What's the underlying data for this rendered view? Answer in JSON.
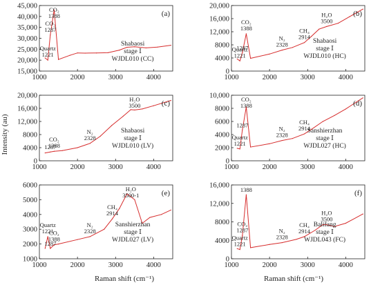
{
  "figure": {
    "xlabel": "Raman shift (cm⁻¹)",
    "ylabel": "Intensity (au)",
    "series_color": "#d62b2b"
  },
  "chart_data": [
    {
      "type": "line",
      "panel": "(a)",
      "xlim": [
        1000,
        4500
      ],
      "xticks": [
        1000,
        2000,
        3000,
        4000
      ],
      "ylim": [
        15000,
        45000
      ],
      "yticks": [
        15000,
        20000,
        25000,
        30000,
        35000,
        40000,
        45000
      ],
      "ytick_labels": [
        "15,000",
        "20,000",
        "25,000",
        "30,000",
        "35,000",
        "40,000",
        "45,000"
      ],
      "x": [
        1150,
        1221,
        1287,
        1388,
        1500,
        1800,
        2000,
        2200,
        2500,
        2800,
        3100,
        3300,
        3500,
        3800,
        4100,
        4450
      ],
      "y": [
        21000,
        20000,
        31500,
        43000,
        20300,
        22200,
        23300,
        23200,
        23300,
        23400,
        24600,
        25900,
        26100,
        25600,
        26000,
        26800
      ],
      "annotations": [
        {
          "label": "CO₂",
          "sublabel": "1388",
          "x": 1388,
          "y": 43000
        },
        {
          "label": "CO₂",
          "sublabel": "1287",
          "x": 1287,
          "y": 31500
        },
        {
          "label": "Quartz",
          "sublabel": "1221",
          "x": 1221,
          "y": 20000
        }
      ],
      "sample_text": [
        "Shabaosi",
        "stage Ⅰ",
        "WJDL010 (CC)"
      ]
    },
    {
      "type": "line",
      "panel": "(b)",
      "xlim": [
        1000,
        4500
      ],
      "xticks": [
        1000,
        2000,
        3000,
        4000
      ],
      "ylim": [
        0,
        20000
      ],
      "yticks": [
        0,
        4000,
        8000,
        12000,
        16000,
        20000
      ],
      "ytick_labels": [
        "0",
        "4000",
        "8000",
        "12,000",
        "16,000",
        "20,000"
      ],
      "x": [
        1150,
        1221,
        1287,
        1388,
        1500,
        2000,
        2328,
        2600,
        2914,
        3100,
        3300,
        3500,
        3800,
        4100,
        4450
      ],
      "y": [
        3700,
        3100,
        5600,
        11400,
        3900,
        5200,
        6400,
        7200,
        8700,
        10600,
        12800,
        13600,
        14600,
        16600,
        18900
      ],
      "annotations": [
        {
          "label": "CO₂",
          "sublabel": "1388",
          "x": 1388,
          "y": 11400
        },
        {
          "label": "1287",
          "sublabel": "",
          "x": 1287,
          "y": 5600
        },
        {
          "label": "Quartz",
          "sublabel": "1221",
          "x": 1221,
          "y": 3100
        },
        {
          "label": "N₂",
          "sublabel": "2328",
          "x": 2328,
          "y": 6400
        },
        {
          "label": "CH₄",
          "sublabel": "2914",
          "x": 2914,
          "y": 8700
        },
        {
          "label": "H₂O",
          "sublabel": "3500",
          "x": 3500,
          "y": 13600
        }
      ],
      "sample_text": [
        "Shabaosi",
        "stage Ⅰ",
        "WJDL010 (HC)"
      ]
    },
    {
      "type": "line",
      "panel": "(c)",
      "xlim": [
        1000,
        4500
      ],
      "xticks": [
        1000,
        2000,
        3000,
        4000
      ],
      "ylim": [
        0,
        20000
      ],
      "yticks": [
        0,
        4000,
        8000,
        12000,
        16000,
        20000
      ],
      "ytick_labels": [
        "0",
        "4000",
        "8000",
        "12,000",
        "16,000",
        "20,000"
      ],
      "x": [
        1150,
        1287,
        1388,
        1600,
        2000,
        2328,
        2600,
        2900,
        3200,
        3400,
        3500,
        3700,
        4000,
        4450
      ],
      "y": [
        2400,
        2700,
        2900,
        3100,
        4000,
        5300,
        7500,
        10800,
        13600,
        15600,
        15500,
        15800,
        16800,
        18400
      ],
      "annotations": [
        {
          "label": "H₂O",
          "sublabel": "3500",
          "x": 3500,
          "y": 15500
        },
        {
          "label": "CO₂",
          "sublabel": "1388",
          "x": 1388,
          "y": 2900
        },
        {
          "label": "N₂",
          "sublabel": "2328",
          "x": 2328,
          "y": 5300
        },
        {
          "label": "1287",
          "sublabel": "",
          "x": 1287,
          "y": 2700
        }
      ],
      "sample_text": [
        "Shabaosi",
        "stage Ⅰ",
        "WJDL010 (LV)"
      ]
    },
    {
      "type": "line",
      "panel": "(d)",
      "xlim": [
        1000,
        4500
      ],
      "xticks": [
        1000,
        2000,
        3000,
        4000
      ],
      "ylim": [
        0,
        10000
      ],
      "yticks": [
        0,
        2000,
        4000,
        6000,
        8000,
        10000
      ],
      "ytick_labels": [
        "0",
        "2000",
        "4000",
        "6000",
        "8000",
        "10,000"
      ],
      "x": [
        1150,
        1221,
        1287,
        1388,
        1500,
        2000,
        2328,
        2600,
        2914,
        3100,
        3400,
        3700,
        4000,
        4450
      ],
      "y": [
        1900,
        1800,
        4700,
        8200,
        2100,
        2600,
        3100,
        3400,
        4100,
        4800,
        6000,
        6900,
        7900,
        9600
      ],
      "annotations": [
        {
          "label": "CO₂",
          "sublabel": "1388",
          "x": 1388,
          "y": 8200
        },
        {
          "label": "1287",
          "sublabel": "",
          "x": 1287,
          "y": 4700
        },
        {
          "label": "Quartz",
          "sublabel": "1221",
          "x": 1221,
          "y": 1800
        },
        {
          "label": "N₂",
          "sublabel": "2328",
          "x": 2328,
          "y": 3100
        },
        {
          "label": "CH₄",
          "sublabel": "2914",
          "x": 2914,
          "y": 4100
        }
      ],
      "sample_text": [
        "Sanshierzhan",
        "stage Ⅰ",
        "WJDL027 (HC)"
      ]
    },
    {
      "type": "line",
      "panel": "(e)",
      "xlim": [
        1000,
        4500
      ],
      "xticks": [
        1000,
        2000,
        3000,
        4000
      ],
      "ylim": [
        1000,
        6000
      ],
      "yticks": [
        1000,
        2000,
        3000,
        4000,
        5000,
        6000
      ],
      "ytick_labels": [
        "1000",
        "2000",
        "3000",
        "4000",
        "5000",
        "6000"
      ],
      "x": [
        1150,
        1221,
        1287,
        1388,
        1500,
        2000,
        2328,
        2700,
        2914,
        3100,
        3300,
        3500,
        3700,
        3900,
        4200,
        4450
      ],
      "y": [
        1700,
        2500,
        1700,
        1950,
        2000,
        2300,
        2500,
        3000,
        3700,
        4400,
        5400,
        5000,
        3400,
        3800,
        4000,
        4300
      ],
      "annotations": [
        {
          "label": "H₂O",
          "sublabel": "3500-1",
          "x": 3400,
          "y": 5600
        },
        {
          "label": "CH₄",
          "sublabel": "2914",
          "x": 2914,
          "y": 3700
        },
        {
          "label": "N₂",
          "sublabel": "2328",
          "x": 2328,
          "y": 2500
        },
        {
          "label": "Quartz",
          "sublabel": "1221",
          "x": 1221,
          "y": 2500
        },
        {
          "label": "CO₂",
          "sublabel": "1388",
          "x": 1388,
          "y": 1950
        },
        {
          "label": "1287",
          "sublabel": "",
          "x": 1287,
          "y": 1700
        }
      ],
      "sample_text": [
        "Sanshierzhan",
        "stage Ⅰ",
        "WJDL027 (LV)"
      ]
    },
    {
      "type": "line",
      "panel": "(f)",
      "xlim": [
        1000,
        4500
      ],
      "xticks": [
        1000,
        2000,
        3000,
        4000
      ],
      "ylim": [
        0,
        16000
      ],
      "yticks": [
        0,
        4000,
        8000,
        12000,
        16000
      ],
      "ytick_labels": [
        "0",
        "4000",
        "8000",
        "12,000",
        "16,000"
      ],
      "x": [
        1150,
        1221,
        1287,
        1388,
        1500,
        2000,
        2328,
        2700,
        2914,
        3200,
        3400,
        3500,
        3700,
        4000,
        4450
      ],
      "y": [
        2200,
        2000,
        5000,
        13900,
        2400,
        3100,
        3500,
        4200,
        4800,
        6200,
        7400,
        7400,
        7000,
        7700,
        9700
      ],
      "annotations": [
        {
          "label": "1388",
          "sublabel": "",
          "x": 1388,
          "y": 13900
        },
        {
          "label": "CO₂",
          "sublabel": "1287",
          "x": 1287,
          "y": 5000
        },
        {
          "label": "Quartz",
          "sublabel": "1221",
          "x": 1221,
          "y": 2000
        },
        {
          "label": "N₂",
          "sublabel": "2328",
          "x": 2328,
          "y": 3500
        },
        {
          "label": "CH₄",
          "sublabel": "2914",
          "x": 2914,
          "y": 4800
        },
        {
          "label": "H₂O",
          "sublabel": "3500",
          "x": 3500,
          "y": 7400
        }
      ],
      "sample_text": [
        "Balifang",
        "stage Ⅰ",
        "WJDL043 (FC)"
      ]
    }
  ]
}
